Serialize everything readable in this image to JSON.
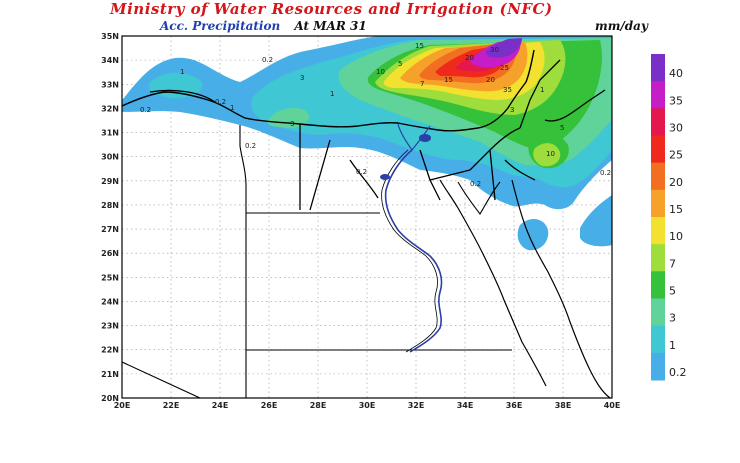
{
  "header": {
    "title": "Ministry of Water Resources and Irrigation (NFC)",
    "subtitle_field": "Acc. Precipitation",
    "subtitle_date": "At MAR 31",
    "units": "mm/day"
  },
  "map": {
    "lat_labels": [
      "35N",
      "34N",
      "33N",
      "32N",
      "31N",
      "30N",
      "29N",
      "28N",
      "27N",
      "26N",
      "25N",
      "24N",
      "23N",
      "22N",
      "21N",
      "20N"
    ],
    "lon_labels": [
      "20E",
      "22E",
      "24E",
      "26E",
      "28E",
      "30E",
      "32E",
      "34E",
      "36E",
      "38E",
      "40E"
    ]
  },
  "legend": {
    "levels": [
      {
        "label": "40",
        "color": "#7a2fc9"
      },
      {
        "label": "35",
        "color": "#c51ec7"
      },
      {
        "label": "30",
        "color": "#e5174f"
      },
      {
        "label": "25",
        "color": "#ef2a1c"
      },
      {
        "label": "20",
        "color": "#f26f22"
      },
      {
        "label": "15",
        "color": "#f6a22a"
      },
      {
        "label": "10",
        "color": "#f2e12e"
      },
      {
        "label": "7",
        "color": "#9edd3b"
      },
      {
        "label": "5",
        "color": "#36c13a"
      },
      {
        "label": "3",
        "color": "#5fd39a"
      },
      {
        "label": "1",
        "color": "#3fc7d4"
      },
      {
        "label": "0.2",
        "color": "#48aee8"
      }
    ]
  },
  "contour_labels": [
    "0.2",
    "0.2",
    "0.2",
    "0.2",
    "0.2",
    "0.2",
    "0.2",
    "1",
    "1",
    "1",
    "1",
    "3",
    "3",
    "3",
    "5",
    "5",
    "7",
    "10",
    "10",
    "15",
    "15",
    "20",
    "20",
    "25",
    "30",
    "35"
  ]
}
